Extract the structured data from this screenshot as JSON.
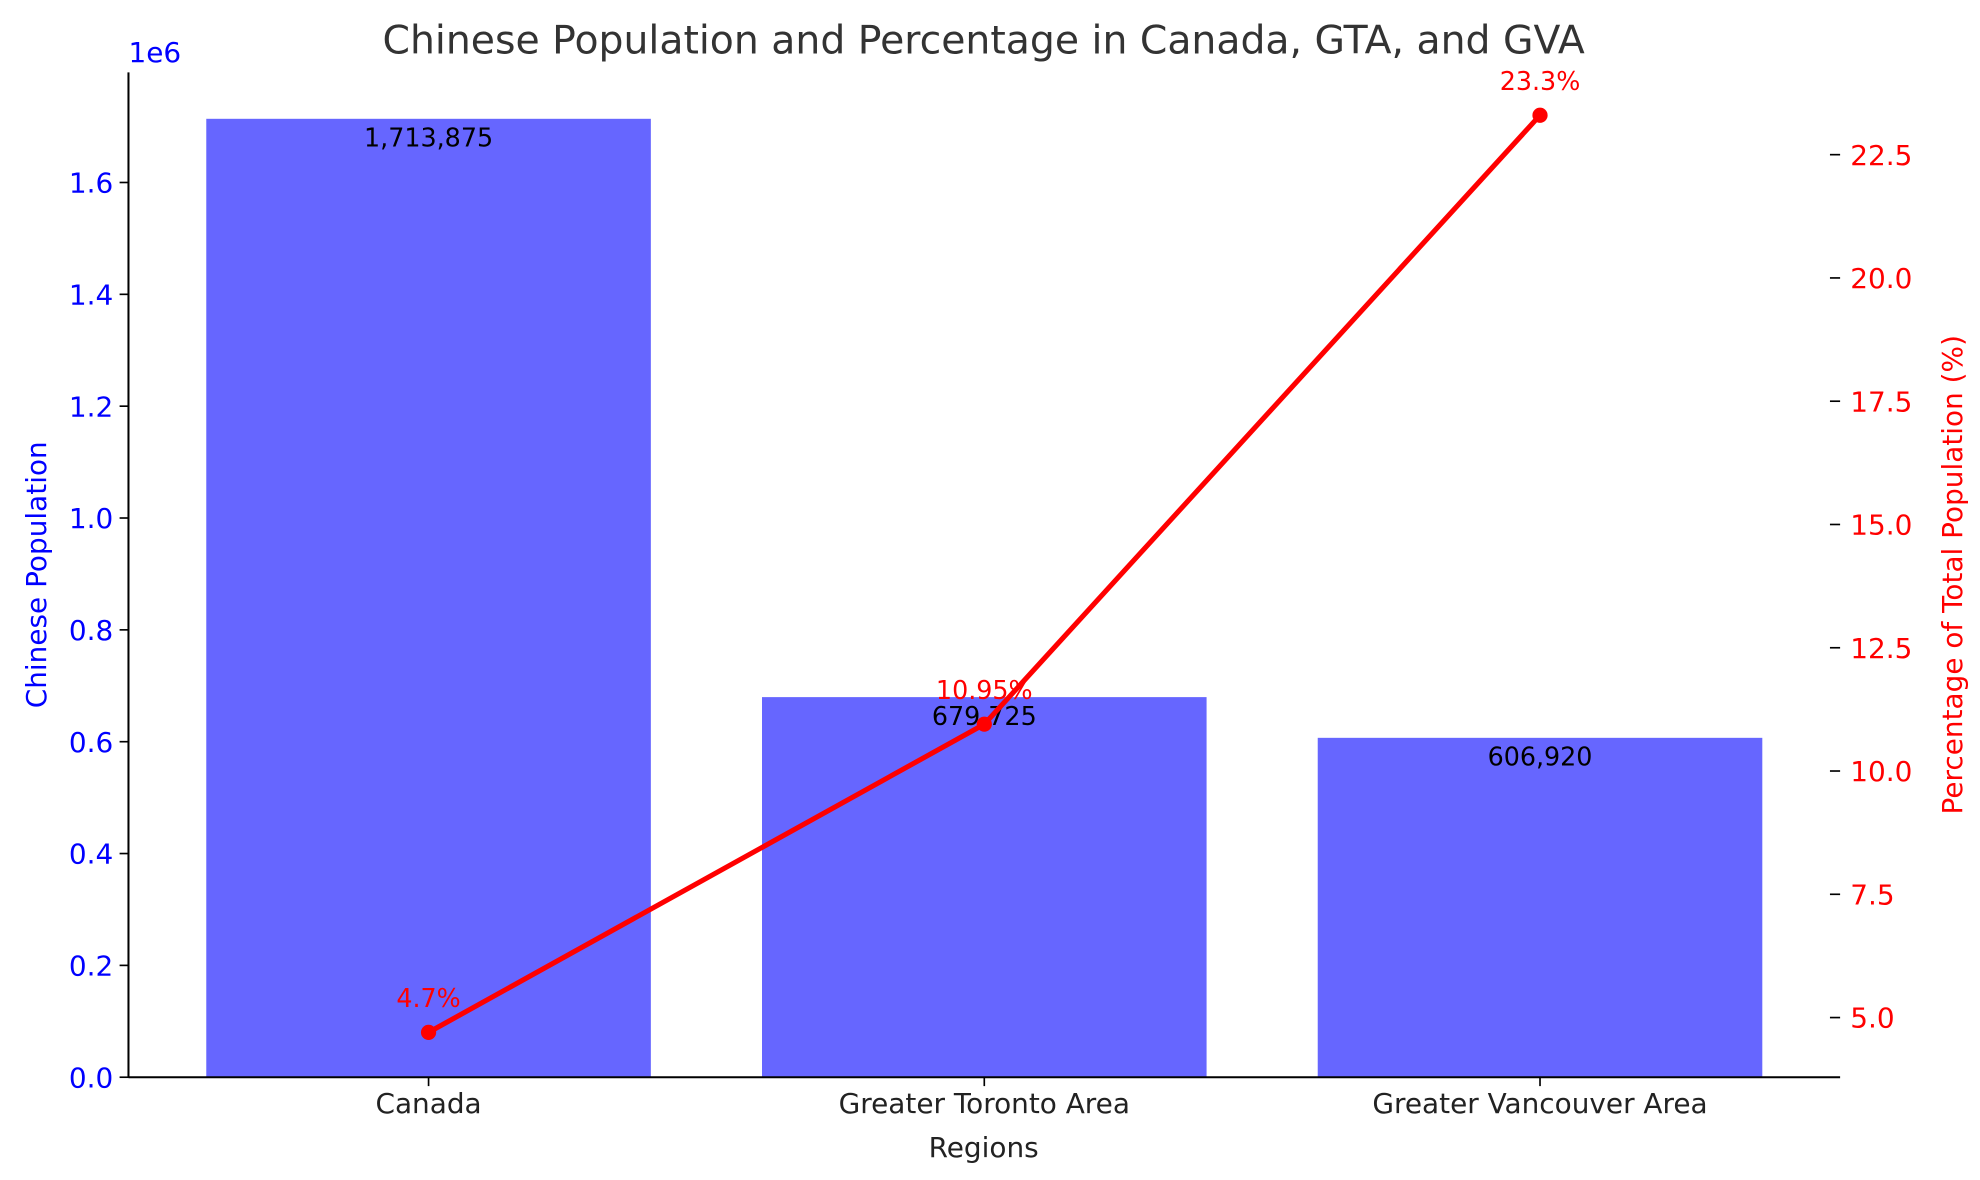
{
  "chart_data": {
    "type": "bar",
    "title": "Chinese Population and Percentage in Canada, GTA, and GVA",
    "xlabel": "Regions",
    "ylabel": "Chinese Population",
    "y2label": "Percentage of Total Population (%)",
    "y_offset_label": "1e6",
    "categories": [
      "Canada",
      "Greater Toronto Area",
      "Greater Vancouver Area"
    ],
    "series": [
      {
        "name": "Chinese Population",
        "type": "bar",
        "axis": "left",
        "color": "#6666ff",
        "values": [
          1713875,
          679725,
          606920
        ],
        "labels": [
          "1,713,875",
          "679,725",
          "606,920"
        ]
      },
      {
        "name": "Percentage of Total Population",
        "type": "line",
        "axis": "right",
        "color": "#ff0000",
        "values": [
          4.7,
          10.95,
          23.3
        ],
        "labels": [
          "4.7%",
          "10.95%",
          "23.3%"
        ]
      }
    ],
    "ylim": [
      0,
      1797000
    ],
    "y2lim": [
      3.79,
      24.17
    ],
    "yticks": [
      0,
      0.2,
      0.4,
      0.6,
      0.8,
      1.0,
      1.2,
      1.4,
      1.6
    ],
    "yticklabels": [
      "0.0",
      "0.2",
      "0.4",
      "0.6",
      "0.8",
      "1.0",
      "1.2",
      "1.4",
      "1.6"
    ],
    "y2ticks": [
      5,
      7.5,
      10,
      12.5,
      15,
      17.5,
      20,
      22.5
    ],
    "y2ticklabels": [
      "5.0",
      "7.5",
      "10.0",
      "12.5",
      "15.0",
      "17.5",
      "20.0",
      "22.5"
    ],
    "grid": false,
    "colors": {
      "left_axis": "#0000ff",
      "right_axis": "#ff0000",
      "title": "#333333"
    }
  }
}
